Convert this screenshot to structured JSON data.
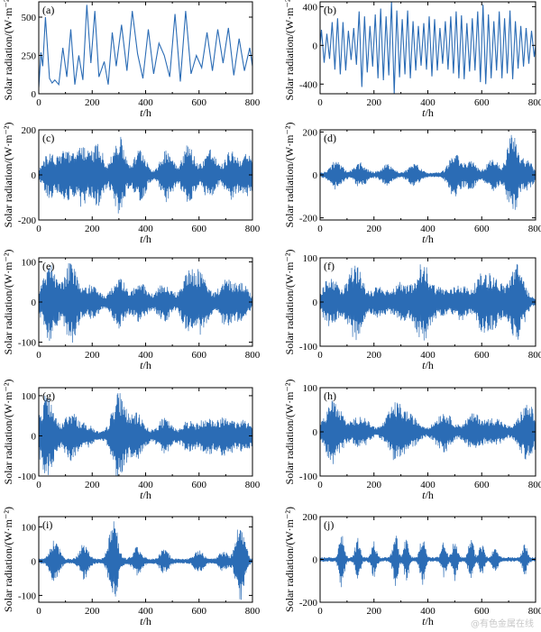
{
  "figure": {
    "watermark": "@有色金属在线"
  },
  "chart_data": [
    {
      "type": "line",
      "panel_label": "(a)",
      "xlabel": "t/h",
      "ylabel": "Solar radiation/(W·m⁻²)",
      "xlim": [
        0,
        800
      ],
      "ylim": [
        0,
        600
      ],
      "xticks": [
        0,
        200,
        400,
        600,
        800
      ],
      "yticks": [
        0,
        250,
        500
      ],
      "color": "#2b6cb5",
      "series": [
        {
          "x": [
            0,
            8,
            15,
            25,
            40,
            50,
            60,
            75,
            90,
            105,
            120,
            135,
            150,
            165,
            180,
            195,
            210,
            225,
            245,
            260,
            275,
            290,
            310,
            330,
            350,
            370,
            390,
            410,
            430,
            450,
            470,
            490,
            510,
            530,
            550,
            570,
            590,
            610,
            630,
            650,
            670,
            690,
            710,
            730,
            750,
            770,
            790,
            800
          ],
          "values": [
            40,
            270,
            180,
            500,
            100,
            70,
            90,
            60,
            300,
            110,
            420,
            60,
            250,
            90,
            580,
            200,
            540,
            110,
            210,
            60,
            400,
            180,
            450,
            150,
            540,
            260,
            100,
            420,
            130,
            330,
            250,
            110,
            520,
            80,
            540,
            130,
            250,
            170,
            400,
            150,
            420,
            200,
            430,
            120,
            360,
            150,
            300,
            180
          ]
        }
      ]
    },
    {
      "type": "line",
      "panel_label": "(b)",
      "xlabel": "t/h",
      "ylabel": "Solar radiation/(W·m⁻²)",
      "xlim": [
        0,
        800
      ],
      "ylim": [
        -500,
        450
      ],
      "xticks": [
        0,
        200,
        400,
        600,
        800
      ],
      "yticks": [
        -400,
        0,
        400
      ],
      "color": "#2b6cb5",
      "series": [
        {
          "x": [
            0,
            5,
            15,
            25,
            35,
            45,
            55,
            65,
            75,
            85,
            95,
            105,
            115,
            125,
            135,
            145,
            155,
            165,
            175,
            185,
            195,
            205,
            215,
            225,
            235,
            245,
            255,
            265,
            275,
            285,
            295,
            305,
            315,
            325,
            335,
            345,
            355,
            365,
            375,
            385,
            395,
            405,
            415,
            425,
            435,
            445,
            455,
            465,
            475,
            485,
            495,
            505,
            515,
            525,
            535,
            545,
            555,
            565,
            575,
            585,
            595,
            605,
            615,
            625,
            635,
            645,
            655,
            665,
            675,
            685,
            695,
            705,
            715,
            725,
            735,
            745,
            755,
            765,
            775,
            785,
            795,
            800
          ],
          "values": [
            0,
            160,
            -180,
            120,
            -140,
            240,
            -250,
            280,
            -300,
            240,
            -260,
            150,
            -150,
            180,
            -200,
            350,
            -430,
            300,
            -280,
            200,
            -220,
            320,
            -340,
            380,
            -360,
            300,
            -310,
            450,
            -500,
            360,
            -330,
            270,
            -300,
            360,
            -340,
            250,
            -260,
            200,
            -210,
            230,
            -250,
            300,
            -320,
            270,
            -260,
            180,
            -190,
            250,
            -250,
            300,
            -290,
            350,
            -340,
            310,
            -350,
            230,
            -270,
            280,
            -260,
            350,
            -380,
            420,
            -400,
            320,
            -340,
            250,
            -260,
            350,
            -340,
            280,
            -290,
            360,
            -350,
            250,
            -240,
            200,
            -220,
            180,
            -190,
            150,
            -120,
            0
          ]
        }
      ]
    },
    {
      "type": "line",
      "panel_label": "(c)",
      "xlabel": "t/h",
      "ylabel": "Solar radiation/(W·m⁻²)",
      "xlim": [
        0,
        800
      ],
      "ylim": [
        -200,
        200
      ],
      "xticks": [
        0,
        200,
        400,
        600,
        800
      ],
      "yticks": [
        -200,
        0,
        200
      ],
      "color": "#2b6cb5",
      "envelope": "Fluctuations of up to about ±170 around 0 across the full range"
    },
    {
      "type": "line",
      "panel_label": "(d)",
      "xlabel": "t/h",
      "ylabel": "Solar radiation/(W·m⁻²)",
      "xlim": [
        0,
        800
      ],
      "ylim": [
        -210,
        210
      ],
      "xticks": [
        0,
        200,
        400,
        600,
        800
      ],
      "yticks": [
        -200,
        0,
        200
      ],
      "color": "#2b6cb5",
      "envelope": "Mostly under ±60, bursts near t = 500 and a peak near ±200 at t ≈ 720"
    },
    {
      "type": "line",
      "panel_label": "(e)",
      "xlabel": "t/h",
      "ylabel": "Solar radiation/(W·m⁻²)",
      "xlim": [
        0,
        800
      ],
      "ylim": [
        -110,
        110
      ],
      "xticks": [
        0,
        200,
        400,
        600,
        800
      ],
      "yticks": [
        -100,
        0,
        100
      ],
      "color": "#2b6cb5",
      "envelope": "Wave packets up to about ±100 around t = 50 and 120, decreasing later"
    },
    {
      "type": "line",
      "panel_label": "(f)",
      "xlabel": "t/h",
      "ylabel": "Solar radiation/(W·m⁻²)",
      "xlim": [
        0,
        800
      ],
      "ylim": [
        -100,
        100
      ],
      "xticks": [
        0,
        200,
        400,
        600,
        800
      ],
      "yticks": [
        -100,
        0,
        100
      ],
      "color": "#2b6cb5",
      "envelope": "Packets up to about ±90 near t = 130, 380 and 730"
    },
    {
      "type": "line",
      "panel_label": "(g)",
      "xlabel": "t/h",
      "ylabel": "Solar radiation/(W·m⁻²)",
      "xlim": [
        0,
        800
      ],
      "ylim": [
        -100,
        120
      ],
      "xticks": [
        0,
        200,
        400,
        600,
        800
      ],
      "yticks": [
        -100,
        0,
        100
      ],
      "color": "#2b6cb5",
      "envelope": "Packets up to about ±110 near t = 30 and 300, smaller elsewhere"
    },
    {
      "type": "line",
      "panel_label": "(h)",
      "xlabel": "t/h",
      "ylabel": "Solar radiation/(W·m⁻²)",
      "xlim": [
        0,
        800
      ],
      "ylim": [
        -100,
        100
      ],
      "xticks": [
        0,
        200,
        400,
        600,
        800
      ],
      "yticks": [
        -100,
        0,
        100
      ],
      "color": "#2b6cb5",
      "envelope": "Packets up to about ±70 near t = 50, 270 and 770"
    },
    {
      "type": "line",
      "panel_label": "(i)",
      "xlabel": "t/h",
      "ylabel": "Solar radiation/(W·m⁻²)",
      "xlim": [
        0,
        800
      ],
      "ylim": [
        -120,
        130
      ],
      "xticks": [
        0,
        200,
        400,
        600,
        800
      ],
      "yticks": [
        -100,
        0,
        100
      ],
      "color": "#2b6cb5",
      "envelope": "Quiet except peaks near ±120 at t ≈ 280 and 750"
    },
    {
      "type": "line",
      "panel_label": "(j)",
      "xlabel": "t/h",
      "ylabel": "Solar radiation/(W·m⁻²)",
      "xlim": [
        0,
        800
      ],
      "ylim": [
        -200,
        200
      ],
      "xticks": [
        0,
        200,
        400,
        600,
        800
      ],
      "yticks": [
        -200,
        0,
        200
      ],
      "color": "#2b6cb5",
      "envelope": "Spikes up to about ±140 at t ≈ 80, 280, 380 and 560"
    }
  ]
}
